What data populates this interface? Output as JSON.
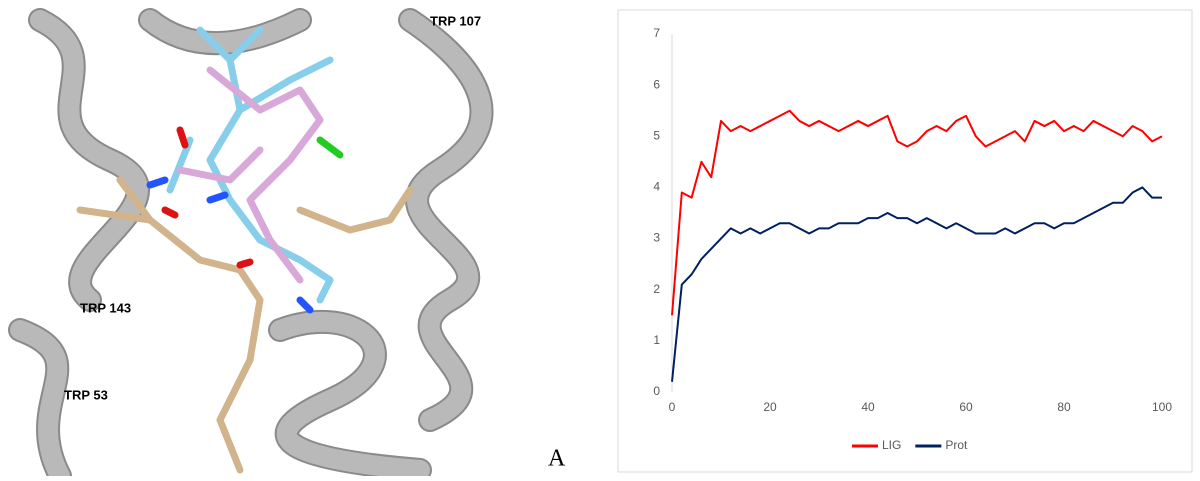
{
  "panel": {
    "labels": [
      "TRP 107",
      "TRP 143",
      "TRP 53"
    ],
    "letter": "A"
  },
  "chart_data": {
    "type": "line",
    "x": [
      0,
      2,
      4,
      6,
      8,
      10,
      12,
      14,
      16,
      18,
      20,
      22,
      24,
      26,
      28,
      30,
      32,
      34,
      36,
      38,
      40,
      42,
      44,
      46,
      48,
      50,
      52,
      54,
      56,
      58,
      60,
      62,
      64,
      66,
      68,
      70,
      72,
      74,
      76,
      78,
      80,
      82,
      84,
      86,
      88,
      90,
      92,
      94,
      96,
      98,
      100
    ],
    "series": [
      {
        "name": "LIG",
        "color": "#ff0000",
        "values": [
          1.5,
          3.9,
          3.8,
          4.5,
          4.2,
          5.3,
          5.1,
          5.2,
          5.1,
          5.2,
          5.3,
          5.4,
          5.5,
          5.3,
          5.2,
          5.3,
          5.2,
          5.1,
          5.2,
          5.3,
          5.2,
          5.3,
          5.4,
          4.9,
          4.8,
          4.9,
          5.1,
          5.2,
          5.1,
          5.3,
          5.4,
          5.0,
          4.8,
          4.9,
          5.0,
          5.1,
          4.9,
          5.3,
          5.2,
          5.3,
          5.1,
          5.2,
          5.1,
          5.3,
          5.2,
          5.1,
          5.0,
          5.2,
          5.1,
          4.9,
          5.0
        ]
      },
      {
        "name": "Prot",
        "color": "#002060",
        "values": [
          0.2,
          2.1,
          2.3,
          2.6,
          2.8,
          3.0,
          3.2,
          3.1,
          3.2,
          3.1,
          3.2,
          3.3,
          3.3,
          3.2,
          3.1,
          3.2,
          3.2,
          3.3,
          3.3,
          3.3,
          3.4,
          3.4,
          3.5,
          3.4,
          3.4,
          3.3,
          3.4,
          3.3,
          3.2,
          3.3,
          3.2,
          3.1,
          3.1,
          3.1,
          3.2,
          3.1,
          3.2,
          3.3,
          3.3,
          3.2,
          3.3,
          3.3,
          3.4,
          3.5,
          3.6,
          3.7,
          3.7,
          3.9,
          4.0,
          3.8,
          3.8
        ]
      }
    ],
    "xlim": [
      0,
      100
    ],
    "xticks": [
      0,
      20,
      40,
      60,
      80,
      100
    ],
    "ylim": [
      0,
      7
    ],
    "yticks": [
      0,
      1,
      2,
      3,
      4,
      5,
      6,
      7
    ],
    "grid": false,
    "legend": "bottom"
  }
}
